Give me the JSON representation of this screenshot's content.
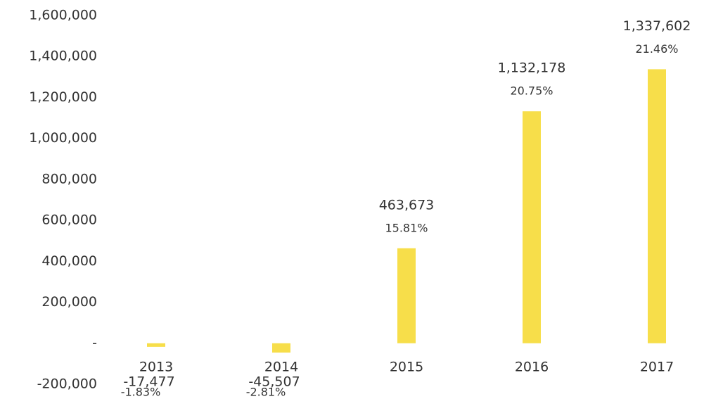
{
  "chart_data": {
    "type": "bar",
    "categories": [
      "2013",
      "2014",
      "2015",
      "2016",
      "2017"
    ],
    "values": [
      -17477,
      -45507,
      463673,
      1132178,
      1337602
    ],
    "value_labels": [
      "-17,477",
      "-45,507",
      "463,673",
      "1,132,178",
      "1,337,602"
    ],
    "percent_labels": [
      "-1.83%",
      "-2.81%",
      "15.81%",
      "20.75%",
      "21.46%"
    ],
    "color": "#f7de4a",
    "ylim": [
      -200000,
      1600000
    ],
    "yticks": [
      {
        "value": -200000,
        "label": "-200,000"
      },
      {
        "value": 0,
        "label": "-"
      },
      {
        "value": 200000,
        "label": "200,000"
      },
      {
        "value": 400000,
        "label": "400,000"
      },
      {
        "value": 600000,
        "label": "600,000"
      },
      {
        "value": 800000,
        "label": "800,000"
      },
      {
        "value": 1000000,
        "label": "1,000,000"
      },
      {
        "value": 1200000,
        "label": "1,200,000"
      },
      {
        "value": 1400000,
        "label": "1,400,000"
      },
      {
        "value": 1600000,
        "label": "1,600,000"
      }
    ],
    "grid": false
  }
}
